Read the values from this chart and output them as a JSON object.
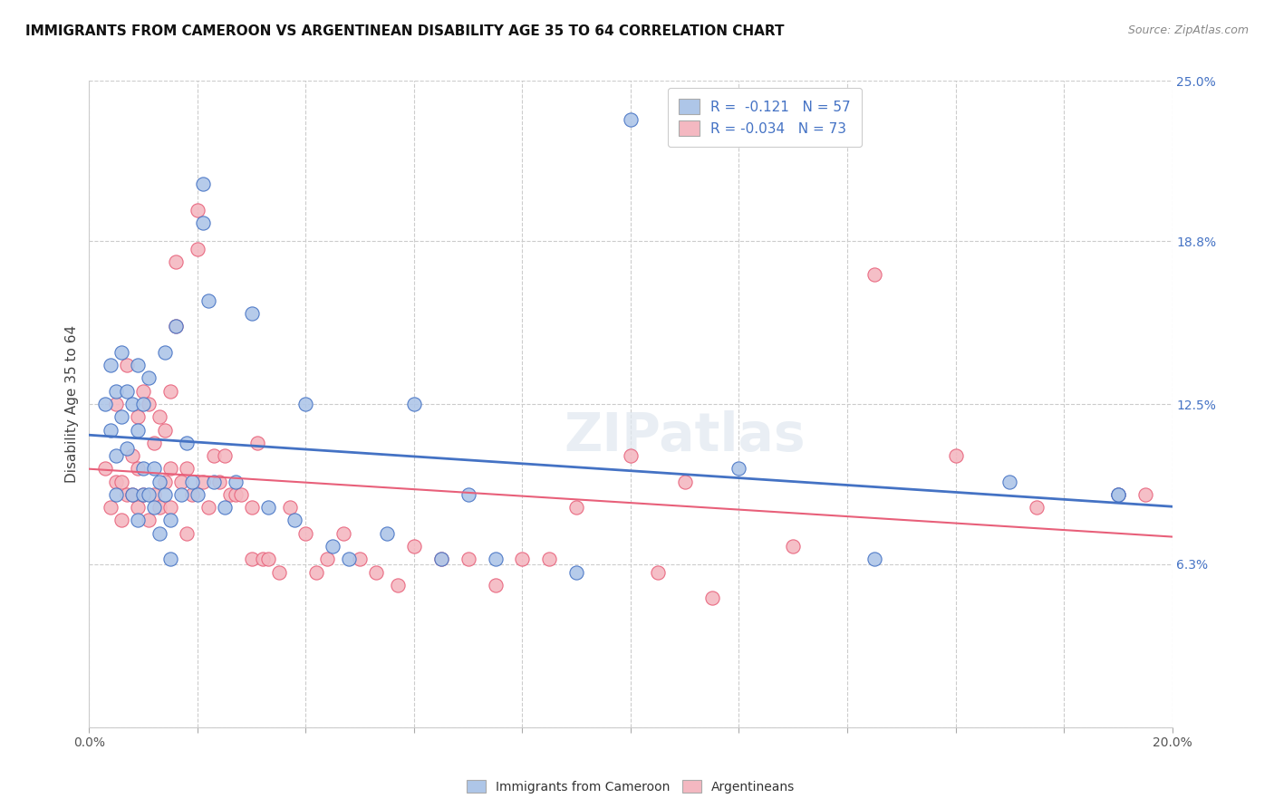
{
  "title": "IMMIGRANTS FROM CAMEROON VS ARGENTINEAN DISABILITY AGE 35 TO 64 CORRELATION CHART",
  "source": "Source: ZipAtlas.com",
  "ylabel": "Disability Age 35 to 64",
  "xlim": [
    0.0,
    0.2
  ],
  "ylim": [
    0.0,
    0.25
  ],
  "xtick_positions": [
    0.0,
    0.02,
    0.04,
    0.06,
    0.08,
    0.1,
    0.12,
    0.14,
    0.16,
    0.18,
    0.2
  ],
  "yticks_right": [
    0.0,
    0.063,
    0.125,
    0.188,
    0.25
  ],
  "yticklabels_right": [
    "",
    "6.3%",
    "12.5%",
    "18.8%",
    "25.0%"
  ],
  "grid_color": "#cccccc",
  "background_color": "#ffffff",
  "cameroon_color": "#aec6e8",
  "argentinean_color": "#f4b8c1",
  "cameroon_line_color": "#4472c4",
  "argentinean_line_color": "#e8607a",
  "legend_R1": "R =  -0.121",
  "legend_N1": "N = 57",
  "legend_R2": "R = -0.034",
  "legend_N2": "N = 73",
  "cameroon_label": "Immigrants from Cameroon",
  "argentinean_label": "Argentineans",
  "cameroon_R": -0.121,
  "cameroon_N": 57,
  "argentinean_R": -0.034,
  "argentinean_N": 73,
  "cameroon_x": [
    0.003,
    0.004,
    0.004,
    0.005,
    0.005,
    0.005,
    0.006,
    0.006,
    0.007,
    0.007,
    0.008,
    0.008,
    0.009,
    0.009,
    0.009,
    0.01,
    0.01,
    0.01,
    0.011,
    0.011,
    0.012,
    0.012,
    0.013,
    0.013,
    0.014,
    0.014,
    0.015,
    0.015,
    0.016,
    0.017,
    0.018,
    0.019,
    0.02,
    0.021,
    0.021,
    0.022,
    0.023,
    0.025,
    0.027,
    0.03,
    0.033,
    0.038,
    0.04,
    0.045,
    0.048,
    0.055,
    0.06,
    0.065,
    0.07,
    0.075,
    0.09,
    0.1,
    0.12,
    0.145,
    0.17,
    0.19,
    0.19
  ],
  "cameroon_y": [
    0.125,
    0.115,
    0.14,
    0.13,
    0.105,
    0.09,
    0.145,
    0.12,
    0.13,
    0.108,
    0.125,
    0.09,
    0.14,
    0.115,
    0.08,
    0.125,
    0.1,
    0.09,
    0.135,
    0.09,
    0.1,
    0.085,
    0.095,
    0.075,
    0.145,
    0.09,
    0.08,
    0.065,
    0.155,
    0.09,
    0.11,
    0.095,
    0.09,
    0.21,
    0.195,
    0.165,
    0.095,
    0.085,
    0.095,
    0.16,
    0.085,
    0.08,
    0.125,
    0.07,
    0.065,
    0.075,
    0.125,
    0.065,
    0.09,
    0.065,
    0.06,
    0.235,
    0.1,
    0.065,
    0.095,
    0.09,
    0.09
  ],
  "argentinean_x": [
    0.003,
    0.004,
    0.005,
    0.005,
    0.006,
    0.006,
    0.007,
    0.007,
    0.008,
    0.008,
    0.009,
    0.009,
    0.009,
    0.01,
    0.01,
    0.011,
    0.011,
    0.012,
    0.012,
    0.013,
    0.013,
    0.014,
    0.014,
    0.015,
    0.015,
    0.015,
    0.016,
    0.016,
    0.017,
    0.018,
    0.018,
    0.019,
    0.02,
    0.02,
    0.021,
    0.022,
    0.023,
    0.024,
    0.025,
    0.026,
    0.027,
    0.028,
    0.03,
    0.03,
    0.031,
    0.032,
    0.033,
    0.035,
    0.037,
    0.04,
    0.042,
    0.044,
    0.047,
    0.05,
    0.053,
    0.057,
    0.06,
    0.065,
    0.07,
    0.075,
    0.08,
    0.085,
    0.09,
    0.1,
    0.105,
    0.11,
    0.115,
    0.13,
    0.145,
    0.16,
    0.175,
    0.19,
    0.195
  ],
  "argentinean_y": [
    0.1,
    0.085,
    0.125,
    0.095,
    0.095,
    0.08,
    0.14,
    0.09,
    0.105,
    0.09,
    0.12,
    0.1,
    0.085,
    0.13,
    0.09,
    0.125,
    0.08,
    0.11,
    0.09,
    0.12,
    0.085,
    0.115,
    0.095,
    0.13,
    0.1,
    0.085,
    0.18,
    0.155,
    0.095,
    0.1,
    0.075,
    0.09,
    0.2,
    0.185,
    0.095,
    0.085,
    0.105,
    0.095,
    0.105,
    0.09,
    0.09,
    0.09,
    0.085,
    0.065,
    0.11,
    0.065,
    0.065,
    0.06,
    0.085,
    0.075,
    0.06,
    0.065,
    0.075,
    0.065,
    0.06,
    0.055,
    0.07,
    0.065,
    0.065,
    0.055,
    0.065,
    0.065,
    0.085,
    0.105,
    0.06,
    0.095,
    0.05,
    0.07,
    0.175,
    0.105,
    0.085,
    0.09,
    0.09
  ]
}
